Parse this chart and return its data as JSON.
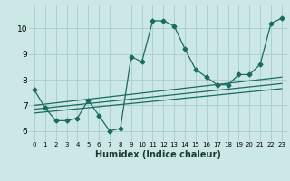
{
  "xlabel": "Humidex (Indice chaleur)",
  "background_color": "#cce8e6",
  "grid_color": "#aaccca",
  "line_color": "#1a6b60",
  "xlim": [
    -0.5,
    23.5
  ],
  "ylim": [
    5.6,
    10.9
  ],
  "xticks": [
    0,
    1,
    2,
    3,
    4,
    5,
    6,
    7,
    8,
    9,
    10,
    11,
    12,
    13,
    14,
    15,
    16,
    17,
    18,
    19,
    20,
    21,
    22,
    23
  ],
  "yticks": [
    6,
    7,
    8,
    9,
    10
  ],
  "line1_x": [
    0,
    1,
    2,
    3,
    4,
    5,
    6,
    7,
    8,
    9,
    10,
    11,
    12,
    13,
    14,
    15,
    16,
    17,
    18,
    19,
    20,
    21,
    22,
    23
  ],
  "line1_y": [
    7.6,
    6.9,
    6.4,
    6.4,
    6.5,
    7.2,
    6.6,
    6.0,
    6.1,
    8.9,
    8.7,
    10.3,
    10.3,
    10.1,
    9.2,
    8.4,
    8.1,
    7.8,
    7.8,
    8.2,
    8.2,
    8.6,
    10.2,
    10.4
  ],
  "line2_x": [
    0,
    23
  ],
  "line2_y": [
    7.0,
    8.1
  ],
  "line3_x": [
    0,
    23
  ],
  "line3_y": [
    6.85,
    7.85
  ],
  "line4_x": [
    0,
    23
  ],
  "line4_y": [
    6.7,
    7.65
  ]
}
